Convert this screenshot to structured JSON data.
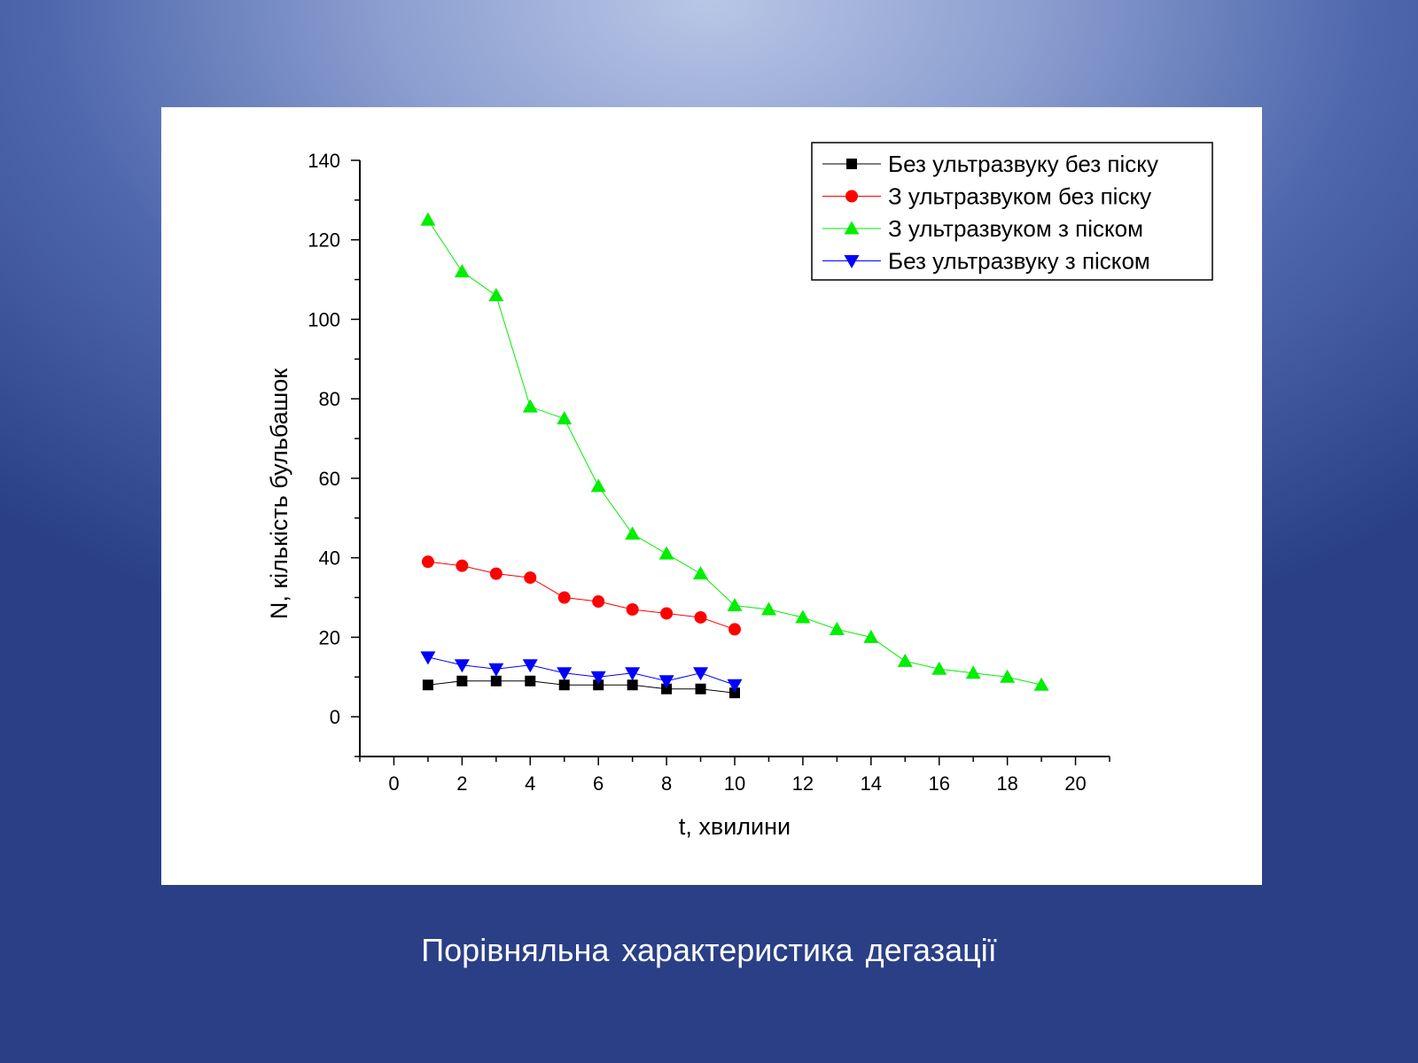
{
  "caption": "Порівняльна характеристика дегазації",
  "chart_data": {
    "type": "line",
    "title": "",
    "xlabel": "t, хвилини",
    "ylabel": "N, кількість бульбашок",
    "xlim": [
      -1,
      21
    ],
    "ylim": [
      -10,
      140
    ],
    "xticks": [
      0,
      2,
      4,
      6,
      8,
      10,
      12,
      14,
      16,
      18,
      20
    ],
    "yticks": [
      0,
      20,
      40,
      60,
      80,
      100,
      120,
      140
    ],
    "grid": false,
    "legend_position": "top-right",
    "series": [
      {
        "name": "Без ультразвуку без піску",
        "color": "#000000",
        "marker": "square",
        "x": [
          1,
          2,
          3,
          4,
          5,
          6,
          7,
          8,
          9,
          10
        ],
        "y": [
          8,
          9,
          9,
          9,
          8,
          8,
          8,
          7,
          7,
          6
        ]
      },
      {
        "name": "З ультразвуком без піску",
        "color": "#ff0000",
        "marker": "circle",
        "x": [
          1,
          2,
          3,
          4,
          5,
          6,
          7,
          8,
          9,
          10
        ],
        "y": [
          39,
          38,
          36,
          35,
          30,
          29,
          27,
          26,
          25,
          22
        ]
      },
      {
        "name": "З ультразвуком з піском",
        "color": "#00ee00",
        "marker": "triangle-up",
        "x": [
          1,
          2,
          3,
          4,
          5,
          6,
          7,
          8,
          9,
          10,
          11,
          12,
          13,
          14,
          15,
          16,
          17,
          18,
          19
        ],
        "y": [
          125,
          112,
          106,
          78,
          75,
          58,
          46,
          41,
          36,
          28,
          27,
          25,
          22,
          20,
          14,
          12,
          11,
          10,
          8
        ]
      },
      {
        "name": "Без ультразвуку з піском",
        "color": "#0000ff",
        "marker": "triangle-down",
        "x": [
          1,
          2,
          3,
          4,
          5,
          6,
          7,
          8,
          9,
          10
        ],
        "y": [
          15,
          13,
          12,
          13,
          11,
          10,
          11,
          9,
          11,
          8
        ]
      }
    ]
  }
}
